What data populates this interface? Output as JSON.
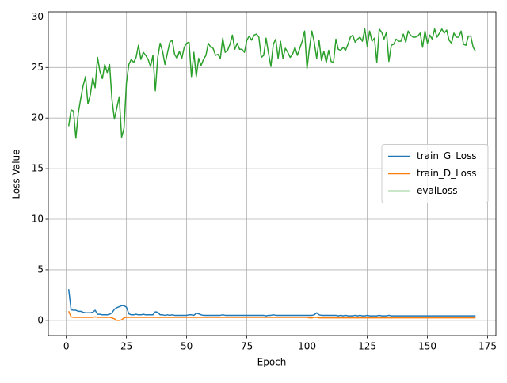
{
  "chart_data": {
    "type": "line",
    "xlabel": "Epoch",
    "ylabel": "Loss Value",
    "x": [
      1,
      2,
      3,
      4,
      5,
      6,
      7,
      8,
      9,
      10,
      11,
      12,
      13,
      14,
      15,
      16,
      17,
      18,
      19,
      20,
      21,
      22,
      23,
      24,
      25,
      26,
      27,
      28,
      29,
      30,
      31,
      32,
      33,
      34,
      35,
      36,
      37,
      38,
      39,
      40,
      41,
      42,
      43,
      44,
      45,
      46,
      47,
      48,
      49,
      50,
      51,
      52,
      53,
      54,
      55,
      56,
      57,
      58,
      59,
      60,
      61,
      62,
      63,
      64,
      65,
      66,
      67,
      68,
      69,
      70,
      71,
      72,
      73,
      74,
      75,
      76,
      77,
      78,
      79,
      80,
      81,
      82,
      83,
      84,
      85,
      86,
      87,
      88,
      89,
      90,
      91,
      92,
      93,
      94,
      95,
      96,
      97,
      98,
      99,
      100,
      101,
      102,
      103,
      104,
      105,
      106,
      107,
      108,
      109,
      110,
      111,
      112,
      113,
      114,
      115,
      116,
      117,
      118,
      119,
      120,
      121,
      122,
      123,
      124,
      125,
      126,
      127,
      128,
      129,
      130,
      131,
      132,
      133,
      134,
      135,
      136,
      137,
      138,
      139,
      140,
      141,
      142,
      143,
      144,
      145,
      146,
      147,
      148,
      149,
      150,
      151,
      152,
      153,
      154,
      155,
      156,
      157,
      158,
      159,
      160,
      161,
      162,
      163,
      164,
      165,
      166,
      167,
      168,
      169,
      170
    ],
    "series": [
      {
        "name": "train_G_Loss",
        "color": "#1f77b4",
        "values": [
          3.1,
          1.05,
          1.0,
          1.0,
          0.9,
          0.9,
          0.8,
          0.75,
          0.75,
          0.75,
          0.8,
          1.0,
          0.6,
          0.6,
          0.55,
          0.55,
          0.55,
          0.6,
          0.75,
          1.1,
          1.25,
          1.35,
          1.45,
          1.45,
          1.3,
          0.65,
          0.55,
          0.55,
          0.6,
          0.55,
          0.55,
          0.6,
          0.55,
          0.55,
          0.55,
          0.55,
          0.85,
          0.8,
          0.55,
          0.55,
          0.5,
          0.55,
          0.5,
          0.55,
          0.5,
          0.5,
          0.5,
          0.5,
          0.5,
          0.5,
          0.55,
          0.55,
          0.5,
          0.7,
          0.65,
          0.55,
          0.5,
          0.5,
          0.5,
          0.5,
          0.5,
          0.5,
          0.5,
          0.5,
          0.55,
          0.5,
          0.5,
          0.5,
          0.5,
          0.5,
          0.5,
          0.5,
          0.5,
          0.5,
          0.5,
          0.5,
          0.5,
          0.5,
          0.5,
          0.5,
          0.5,
          0.5,
          0.45,
          0.5,
          0.5,
          0.55,
          0.5,
          0.5,
          0.5,
          0.5,
          0.5,
          0.5,
          0.5,
          0.5,
          0.5,
          0.5,
          0.5,
          0.5,
          0.5,
          0.5,
          0.5,
          0.5,
          0.55,
          0.75,
          0.55,
          0.5,
          0.5,
          0.5,
          0.5,
          0.5,
          0.5,
          0.5,
          0.45,
          0.5,
          0.45,
          0.5,
          0.45,
          0.45,
          0.45,
          0.5,
          0.45,
          0.5,
          0.45,
          0.45,
          0.5,
          0.45,
          0.45,
          0.45,
          0.45,
          0.5,
          0.45,
          0.45,
          0.45,
          0.5,
          0.45,
          0.45,
          0.45,
          0.45,
          0.45,
          0.45,
          0.45,
          0.45,
          0.45,
          0.45,
          0.45,
          0.45,
          0.45,
          0.45,
          0.45,
          0.45,
          0.45,
          0.45,
          0.45,
          0.45,
          0.45,
          0.45,
          0.45,
          0.45,
          0.45,
          0.45,
          0.45,
          0.45,
          0.45,
          0.45,
          0.45,
          0.45,
          0.45,
          0.45,
          0.45,
          0.45
        ]
      },
      {
        "name": "train_D_Loss",
        "color": "#ff7f0e",
        "values": [
          0.9,
          0.35,
          0.3,
          0.3,
          0.3,
          0.3,
          0.3,
          0.3,
          0.3,
          0.3,
          0.3,
          0.35,
          0.3,
          0.3,
          0.3,
          0.3,
          0.3,
          0.3,
          0.25,
          0.15,
          0.0,
          0.0,
          0.05,
          0.25,
          0.3,
          0.3,
          0.3,
          0.3,
          0.3,
          0.3,
          0.3,
          0.3,
          0.3,
          0.3,
          0.3,
          0.3,
          0.3,
          0.3,
          0.3,
          0.3,
          0.3,
          0.3,
          0.3,
          0.3,
          0.3,
          0.3,
          0.3,
          0.3,
          0.3,
          0.3,
          0.3,
          0.3,
          0.3,
          0.3,
          0.3,
          0.3,
          0.3,
          0.3,
          0.3,
          0.3,
          0.3,
          0.3,
          0.3,
          0.3,
          0.3,
          0.3,
          0.3,
          0.3,
          0.3,
          0.3,
          0.3,
          0.3,
          0.3,
          0.3,
          0.3,
          0.3,
          0.3,
          0.3,
          0.3,
          0.3,
          0.3,
          0.3,
          0.3,
          0.3,
          0.3,
          0.3,
          0.3,
          0.3,
          0.3,
          0.3,
          0.3,
          0.3,
          0.3,
          0.3,
          0.3,
          0.3,
          0.3,
          0.3,
          0.3,
          0.3,
          0.25,
          0.25,
          0.3,
          0.3,
          0.25,
          0.25,
          0.25,
          0.25,
          0.25,
          0.25,
          0.25,
          0.25,
          0.25,
          0.25,
          0.25,
          0.25,
          0.25,
          0.25,
          0.25,
          0.25,
          0.25,
          0.25,
          0.25,
          0.25,
          0.25,
          0.25,
          0.25,
          0.25,
          0.25,
          0.25,
          0.25,
          0.25,
          0.25,
          0.25,
          0.25,
          0.25,
          0.25,
          0.25,
          0.25,
          0.25,
          0.25,
          0.25,
          0.25,
          0.25,
          0.25,
          0.25,
          0.25,
          0.25,
          0.25,
          0.25,
          0.25,
          0.25,
          0.25,
          0.25,
          0.25,
          0.25,
          0.25,
          0.25,
          0.25,
          0.25,
          0.25,
          0.25,
          0.25,
          0.25,
          0.25,
          0.25,
          0.25,
          0.25,
          0.25,
          0.25
        ]
      },
      {
        "name": "evalLoss",
        "color": "#2ca02c",
        "values": [
          19.2,
          20.8,
          20.7,
          18.0,
          20.5,
          21.9,
          23.2,
          24.1,
          21.4,
          22.3,
          24.0,
          23.0,
          26.0,
          24.6,
          23.9,
          25.3,
          24.5,
          25.3,
          21.8,
          19.9,
          21.0,
          22.1,
          18.1,
          19.0,
          23.5,
          25.3,
          25.8,
          25.5,
          26.0,
          27.2,
          25.8,
          26.5,
          26.2,
          25.8,
          25.1,
          26.2,
          22.7,
          26.0,
          27.4,
          26.6,
          25.3,
          26.4,
          27.5,
          27.7,
          26.3,
          25.9,
          26.6,
          25.9,
          27.0,
          27.4,
          27.5,
          24.1,
          26.5,
          24.1,
          25.9,
          25.2,
          25.8,
          26.2,
          27.4,
          27.0,
          26.9,
          26.2,
          26.3,
          25.9,
          27.9,
          26.5,
          26.7,
          27.3,
          28.2,
          26.8,
          27.4,
          26.8,
          26.8,
          26.5,
          27.7,
          28.1,
          27.7,
          28.2,
          28.3,
          28.0,
          26.0,
          26.2,
          27.9,
          26.4,
          25.1,
          27.3,
          27.8,
          25.9,
          27.6,
          25.9,
          26.9,
          26.5,
          26.0,
          26.3,
          27.0,
          26.2,
          26.9,
          27.6,
          28.6,
          24.9,
          26.9,
          28.6,
          27.5,
          25.9,
          27.7,
          25.7,
          26.6,
          25.5,
          26.7,
          25.6,
          25.5,
          27.8,
          26.8,
          26.7,
          27.0,
          26.7,
          27.3,
          28.0,
          28.2,
          27.5,
          27.8,
          28.0,
          27.6,
          28.8,
          27.1,
          28.6,
          27.6,
          27.9,
          25.5,
          28.8,
          28.5,
          27.8,
          28.5,
          25.6,
          27.2,
          27.3,
          27.8,
          27.6,
          27.6,
          28.3,
          27.5,
          28.6,
          28.2,
          28.0,
          28.0,
          28.1,
          28.4,
          27.0,
          28.6,
          27.4,
          28.2,
          27.8,
          28.8,
          28.0,
          28.4,
          28.8,
          28.4,
          28.7,
          27.7,
          27.4,
          28.4,
          28.0,
          28.0,
          28.6,
          27.3,
          27.2,
          28.1,
          28.1,
          27.0,
          26.6
        ]
      }
    ],
    "xlim": [
      -7.45,
      178.45
    ],
    "xticks": [
      0,
      25,
      50,
      75,
      100,
      125,
      150,
      175
    ],
    "ylim": [
      -1.5,
      30.5
    ],
    "yticks": [
      0,
      5,
      10,
      15,
      20,
      25,
      30
    ],
    "grid": true,
    "legend": "center right"
  }
}
